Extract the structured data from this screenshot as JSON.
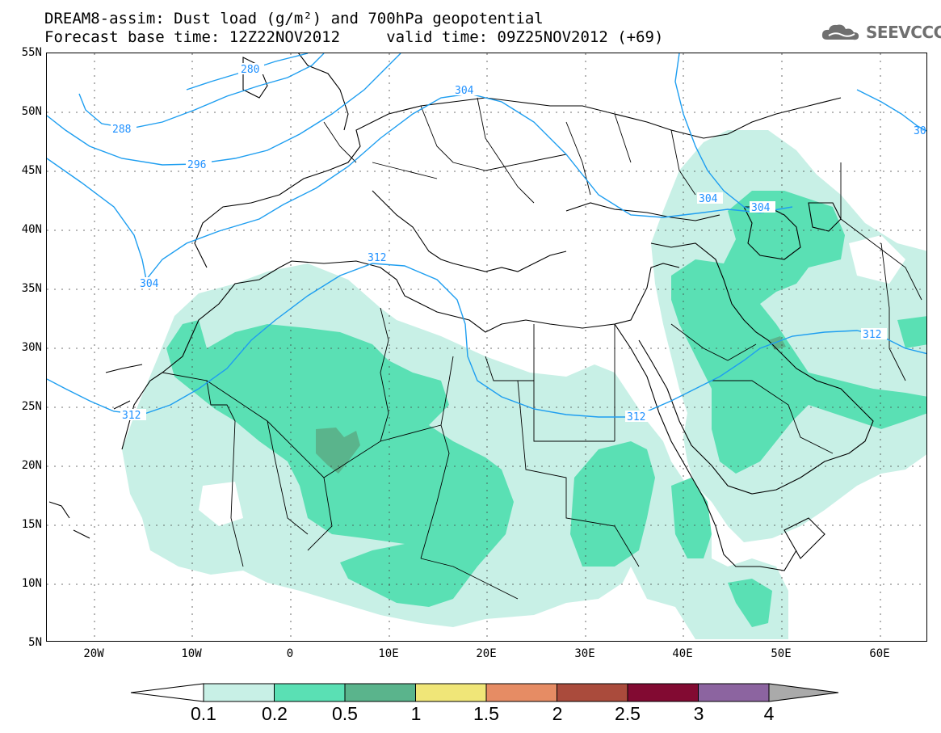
{
  "title_line1": "DREAM8-assim: Dust load (g/m²) and 700hPa geopotential",
  "title_line2": "Forecast base time: 12Z22NOV2012     valid time: 09Z25NOV2012 (+69)",
  "logo_text": "SEEVCCC",
  "lat_labels": [
    "55N",
    "50N",
    "45N",
    "40N",
    "35N",
    "30N",
    "25N",
    "20N",
    "15N",
    "10N",
    "5N"
  ],
  "lon_labels": [
    "20W",
    "10W",
    "0",
    "10E",
    "20E",
    "30E",
    "40E",
    "50E",
    "60E"
  ],
  "contour_labels": [
    "280",
    "288",
    "296",
    "304",
    "312",
    "312",
    "312",
    "312",
    "304",
    "304",
    "304",
    "30"
  ],
  "colorbar": {
    "labels": [
      "0.1",
      "0.2",
      "0.5",
      "1",
      "1.5",
      "2",
      "2.5",
      "3",
      "4"
    ],
    "colors": [
      "#c8f0e6",
      "#5ae0b4",
      "#5ab48c",
      "#f0e678",
      "#e68c64",
      "#aa4b3c",
      "#820a32",
      "#8c64a0",
      "#aaaaaa"
    ]
  }
}
